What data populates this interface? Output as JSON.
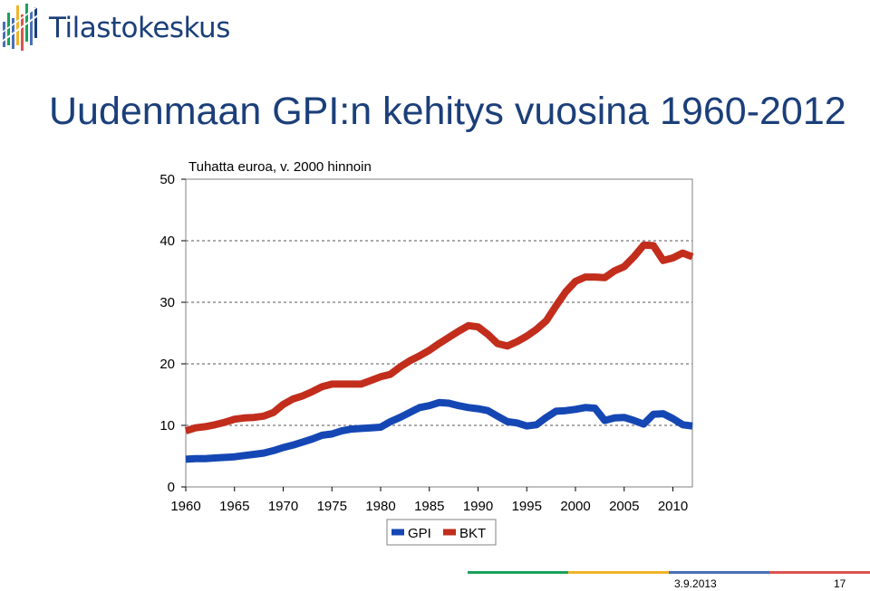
{
  "header": {
    "logo_text": "Tilastokeskus",
    "slide_title": "Uudenmaan GPI:n kehitys vuosina 1960-2012"
  },
  "footer": {
    "date": "3.9.2013",
    "page": "17",
    "bar_colors": [
      "#1aa05a",
      "#f0b429",
      "#4a6fb5",
      "#d9534f"
    ]
  },
  "colors": {
    "gpi": "#1547b4",
    "bkt": "#c22d1c",
    "text": "#1b3f7a"
  },
  "chart_data": {
    "type": "line",
    "unit_label": "Tuhatta euroa, v. 2000 hinnoin",
    "xlim": [
      1960,
      2012
    ],
    "ylim": [
      0,
      50
    ],
    "x_ticks": [
      "1960",
      "1965",
      "1970",
      "1975",
      "1980",
      "1985",
      "1990",
      "1995",
      "2000",
      "2005",
      "2010"
    ],
    "y_ticks": [
      "0",
      "10",
      "20",
      "30",
      "40",
      "50"
    ],
    "gridlines_y": [
      10,
      20,
      30,
      40
    ],
    "grid": "dashed horizontal",
    "legend_position": "bottom-center",
    "x": [
      1960,
      1961,
      1962,
      1963,
      1964,
      1965,
      1966,
      1967,
      1968,
      1969,
      1970,
      1971,
      1972,
      1973,
      1974,
      1975,
      1976,
      1977,
      1978,
      1979,
      1980,
      1981,
      1982,
      1983,
      1984,
      1985,
      1986,
      1987,
      1988,
      1989,
      1990,
      1991,
      1992,
      1993,
      1994,
      1995,
      1996,
      1997,
      1998,
      1999,
      2000,
      2001,
      2002,
      2003,
      2004,
      2005,
      2006,
      2007,
      2008,
      2009,
      2010,
      2011,
      2012
    ],
    "series": [
      {
        "name": "GPI",
        "values": [
          4.5,
          4.6,
          4.6,
          4.7,
          4.8,
          4.9,
          5.1,
          5.3,
          5.5,
          5.9,
          6.4,
          6.8,
          7.3,
          7.8,
          8.4,
          8.6,
          9.1,
          9.4,
          9.5,
          9.6,
          9.7,
          10.6,
          11.3,
          12.1,
          12.9,
          13.2,
          13.7,
          13.6,
          13.2,
          12.9,
          12.7,
          12.4,
          11.5,
          10.6,
          10.4,
          9.9,
          10.1,
          11.3,
          12.3,
          12.4,
          12.6,
          12.9,
          12.8,
          10.8,
          11.2,
          11.3,
          10.8,
          10.2,
          11.8,
          11.9,
          11.1,
          10.1,
          9.9
        ]
      },
      {
        "name": "BKT",
        "values": [
          9.1,
          9.6,
          9.8,
          10.1,
          10.5,
          11.0,
          11.2,
          11.3,
          11.5,
          12.1,
          13.4,
          14.3,
          14.8,
          15.5,
          16.3,
          16.7,
          16.7,
          16.7,
          16.7,
          17.3,
          17.9,
          18.3,
          19.5,
          20.5,
          21.3,
          22.2,
          23.3,
          24.3,
          25.3,
          26.2,
          26.0,
          24.8,
          23.3,
          22.9,
          23.6,
          24.5,
          25.6,
          27.0,
          29.4,
          31.7,
          33.4,
          34.1,
          34.1,
          34.0,
          35.1,
          35.8,
          37.4,
          39.3,
          39.2,
          36.8,
          37.2,
          38.0,
          37.4
        ]
      }
    ]
  }
}
